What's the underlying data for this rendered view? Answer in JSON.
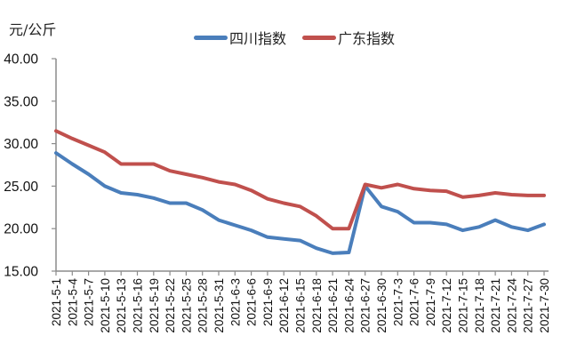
{
  "chart_data": {
    "type": "line",
    "title": "",
    "xlabel": "",
    "ylabel": "元/公斤",
    "ylim": [
      15,
      40
    ],
    "yticks": [
      "40.00",
      "35.00",
      "30.00",
      "25.00",
      "20.00",
      "15.00"
    ],
    "grid": false,
    "legend_position": "top",
    "categories": [
      "2021-5-1",
      "2021-5-4",
      "2021-5-7",
      "2021-5-10",
      "2021-5-13",
      "2021-5-16",
      "2021-5-19",
      "2021-5-22",
      "2021-5-25",
      "2021-5-28",
      "2021-5-31",
      "2021-6-3",
      "2021-6-6",
      "2021-6-9",
      "2021-6-12",
      "2021-6-15",
      "2021-6-18",
      "2021-6-21",
      "2021-6-24",
      "2021-6-27",
      "2021-6-30",
      "2021-7-3",
      "2021-7-6",
      "2021-7-9",
      "2021-7-12",
      "2021-7-15",
      "2021-7-18",
      "2021-7-21",
      "2021-7-24",
      "2021-7-27",
      "2021-7-30"
    ],
    "series": [
      {
        "name": "四川指数",
        "color": "#4a7ebb",
        "values": [
          28.9,
          27.6,
          26.4,
          25.0,
          24.2,
          24.0,
          23.6,
          23.0,
          23.0,
          22.2,
          21.0,
          20.4,
          19.8,
          19.0,
          18.8,
          18.6,
          17.7,
          17.1,
          17.2,
          25.0,
          22.6,
          22.0,
          20.7,
          20.7,
          20.5,
          19.8,
          20.2,
          21.0,
          20.2,
          19.8,
          20.5
        ]
      },
      {
        "name": "广东指数",
        "color": "#c0504d",
        "values": [
          31.5,
          30.6,
          29.8,
          29.0,
          27.6,
          27.6,
          27.6,
          26.8,
          26.4,
          26.0,
          25.5,
          25.2,
          24.5,
          23.5,
          23.0,
          22.6,
          21.5,
          20.0,
          20.0,
          25.2,
          24.8,
          25.2,
          24.7,
          24.5,
          24.4,
          23.7,
          23.9,
          24.2,
          24.0,
          23.9,
          23.9
        ]
      }
    ]
  },
  "unit_label": "元/公斤",
  "legend": {
    "items": [
      {
        "label": "四川指数",
        "color": "#4a7ebb"
      },
      {
        "label": "广东指数",
        "color": "#c0504d"
      }
    ]
  }
}
